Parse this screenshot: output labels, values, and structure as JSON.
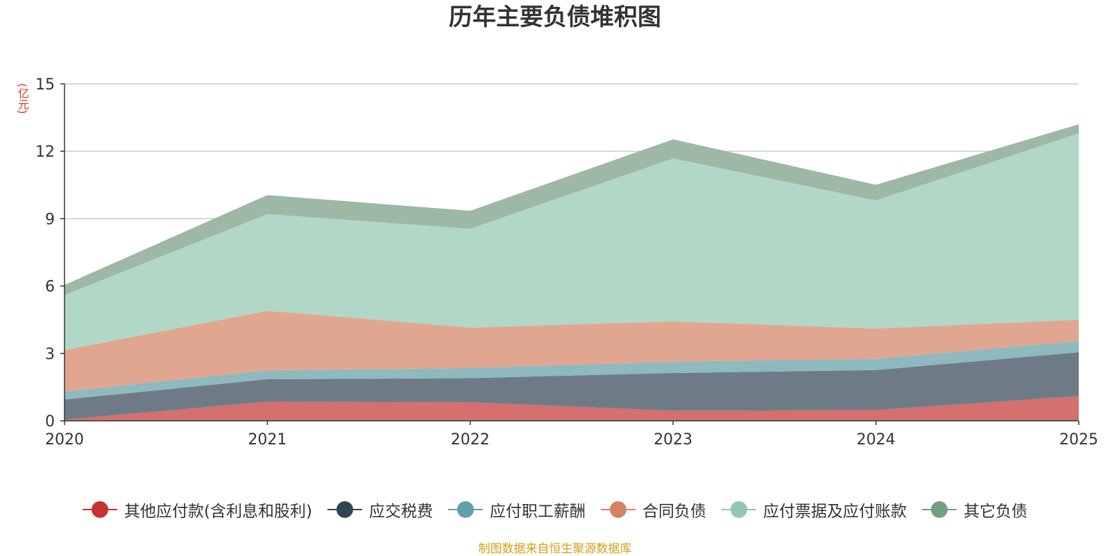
{
  "chart_data": {
    "type": "area",
    "stacked": true,
    "title": "历年主要负债堆积图",
    "unit_label": "(亿元)",
    "x": [
      "2020",
      "2021",
      "2022",
      "2023",
      "2024",
      "2025"
    ],
    "y_ticks": [
      "0",
      "3",
      "6",
      "9",
      "12",
      "15"
    ],
    "ylim": [
      0,
      15
    ],
    "grid": true,
    "legend_position": "bottom",
    "series": [
      {
        "name": "其他应付款(含利息和股利)",
        "values": [
          0.05,
          0.85,
          0.82,
          0.45,
          0.48,
          1.1
        ],
        "color": "#c23531",
        "fill": "#d4706e"
      },
      {
        "name": "应交税费",
        "values": [
          0.9,
          1.0,
          1.08,
          1.68,
          1.78,
          1.95
        ],
        "color": "#2f4554",
        "fill": "#6e7b87"
      },
      {
        "name": "应付职工薪酬",
        "values": [
          0.35,
          0.4,
          0.45,
          0.5,
          0.5,
          0.5
        ],
        "color": "#61a0a8",
        "fill": "#8db9bf"
      },
      {
        "name": "合同负债",
        "values": [
          1.85,
          2.65,
          1.8,
          1.8,
          1.35,
          0.95
        ],
        "color": "#d48265",
        "fill": "#e0a690"
      },
      {
        "name": "应付票据及应付账款",
        "values": [
          2.45,
          4.3,
          4.4,
          7.25,
          5.7,
          8.3
        ],
        "color": "#91c7ae",
        "fill": "#b1d8c6"
      },
      {
        "name": "其它负债",
        "values": [
          0.45,
          0.85,
          0.8,
          0.85,
          0.7,
          0.4
        ],
        "color": "#749f83",
        "fill": "#9db8a5"
      }
    ]
  },
  "source_text": "制图数据来自恒生聚源数据库"
}
